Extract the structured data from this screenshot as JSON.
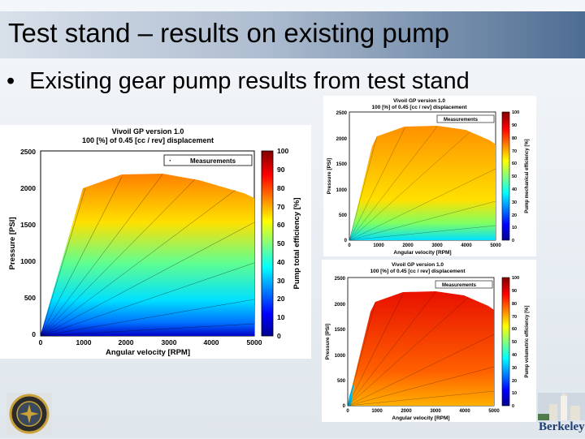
{
  "slide": {
    "title": "Test stand – results on existing pump",
    "bullet": "Existing gear pump results from test stand"
  },
  "colors": {
    "title_bar_start": "#d8e0ea",
    "title_bar_end": "#4e6d92"
  },
  "plots": [
    {
      "title1": "Vivoil GP version 1.0",
      "title2": "100 [%] of 0.45 [cc / rev] displacement",
      "legend": "Measurements",
      "xlabel": "Angular velocity [RPM]",
      "ylabel": "Pressure [PSI]",
      "cblabel": "Pump total efficiency [%]",
      "xticks": [
        "0",
        "1000",
        "2000",
        "3000",
        "4000",
        "5000"
      ],
      "yticks": [
        "0",
        "500",
        "1000",
        "1500",
        "2000",
        "2500"
      ],
      "cticks": [
        "0",
        "10",
        "20",
        "30",
        "40",
        "50",
        "60",
        "70",
        "80",
        "90",
        "100"
      ]
    },
    {
      "title1": "Vivoil GP version 1.0",
      "title2": "100 [%] of 0.45 [cc / rev] displacement",
      "legend": "Measurements",
      "xlabel": "Angular velocity [RPM]",
      "ylabel": "Pressure [PSI]",
      "cblabel": "Pump mechanical efficiency [%]",
      "xticks": [
        "0",
        "1000",
        "2000",
        "3000",
        "4000",
        "5000"
      ],
      "yticks": [
        "0",
        "500",
        "1000",
        "1500",
        "2000",
        "2500"
      ],
      "cticks": [
        "0",
        "10",
        "20",
        "30",
        "40",
        "50",
        "60",
        "70",
        "80",
        "90",
        "100"
      ]
    },
    {
      "title1": "Vivoil GP version 1.0",
      "title2": "100 [%] of 0.45 [cc / rev] displacement",
      "legend": "Measurements",
      "xlabel": "Angular velocity [RPM]",
      "ylabel": "Pressure [PSI]",
      "cblabel": "Pump volumetric efficiency [%]",
      "xticks": [
        "0",
        "1000",
        "2000",
        "3000",
        "4000",
        "5000"
      ],
      "yticks": [
        "0",
        "500",
        "1000",
        "1500",
        "2000",
        "2500"
      ],
      "cticks": [
        "0",
        "10",
        "20",
        "30",
        "40",
        "50",
        "60",
        "70",
        "80",
        "90",
        "100"
      ]
    }
  ],
  "logos": {
    "right_text": "Berkeley"
  }
}
